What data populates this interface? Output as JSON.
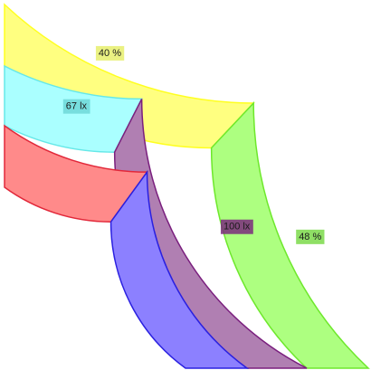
{
  "chart_data": {
    "type": "radial-bar",
    "rings": [
      {
        "name": "",
        "segments": [
          {
            "value": 0.48,
            "color": "#ffff80",
            "stroke": "#ffff20"
          },
          {
            "value": 0.52,
            "color": "#adff80",
            "stroke": "#6ee82c"
          }
        ],
        "label": {
          "text": "48 %",
          "on_segment": 1,
          "color": "#7bd94a"
        }
      },
      {
        "name": "",
        "segments": [
          {
            "value": 0.3,
            "color": "#aaffff",
            "stroke": "#66e8e8"
          },
          {
            "value": 0.7,
            "color": "#b07fb2",
            "stroke": "#7a1f7e"
          }
        ],
        "label": {
          "text": "100 lx",
          "on_segment": 1,
          "color": "#7a2a7c"
        }
      },
      {
        "name": "",
        "segments": [
          {
            "value": 0.4,
            "color": "#ff8a8a",
            "stroke": "#e2283a"
          },
          {
            "value": 0.6,
            "color": "#8c80ff",
            "stroke": "#2a20e0"
          }
        ],
        "label": null
      }
    ],
    "extra_labels": [
      {
        "text": "40 %",
        "ring": 0,
        "fraction_from_start": 0.205,
        "color": "#e6ef6c"
      },
      {
        "text": "67 lx",
        "ring": 1,
        "fraction_from_start": 0.17,
        "color": "#6ed8d8"
      }
    ],
    "sweep": "quarter-circle, starting at bottom and sweeping counter-clockwise to the left"
  }
}
